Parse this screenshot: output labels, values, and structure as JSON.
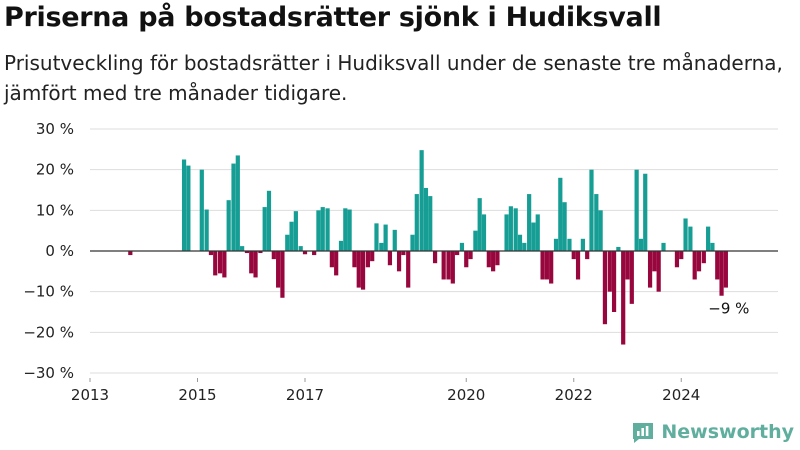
{
  "title": "Priserna på bostadsrätter sjönk i Hudiksvall",
  "subtitle": "Prisutveckling för bostadsrätter i Hudiksvall under de senaste tre månaderna, jämfört med tre månader tidigare.",
  "brand": "Newsworthy",
  "colors": {
    "positive": "#169e95",
    "negative": "#98063e",
    "zero_line": "#333333",
    "grid": "#dddddd"
  },
  "chart_data": {
    "type": "bar",
    "y_unit": "%",
    "ylim": [
      -30,
      30
    ],
    "xlim": [
      2013,
      2025.8
    ],
    "y_ticks": [
      {
        "value": 30,
        "label": "30 %"
      },
      {
        "value": 20,
        "label": "20 %"
      },
      {
        "value": 10,
        "label": "10 %"
      },
      {
        "value": 0,
        "label": "0 %"
      },
      {
        "value": -10,
        "label": "−10 %"
      },
      {
        "value": -20,
        "label": "−20 %"
      },
      {
        "value": -30,
        "label": "−30 %"
      }
    ],
    "x_ticks": [
      {
        "value": 2013,
        "label": "2013"
      },
      {
        "value": 2015,
        "label": "2015"
      },
      {
        "value": 2017,
        "label": "2017"
      },
      {
        "value": 2020,
        "label": "2020"
      },
      {
        "value": 2022,
        "label": "2022"
      },
      {
        "value": 2024,
        "label": "2024"
      }
    ],
    "grid": true,
    "annotation": {
      "text": "−9 %",
      "x": 2024.83,
      "y": -9
    },
    "points": [
      {
        "x": 2013.75,
        "y": -1
      },
      {
        "x": 2014.75,
        "y": 22.5
      },
      {
        "x": 2014.83,
        "y": 21
      },
      {
        "x": 2015.08,
        "y": 20
      },
      {
        "x": 2015.17,
        "y": 10.2
      },
      {
        "x": 2015.25,
        "y": -1
      },
      {
        "x": 2015.33,
        "y": -6
      },
      {
        "x": 2015.42,
        "y": -5.5
      },
      {
        "x": 2015.5,
        "y": -6.5
      },
      {
        "x": 2015.58,
        "y": 12.5
      },
      {
        "x": 2015.67,
        "y": 21.5
      },
      {
        "x": 2015.75,
        "y": 23.5
      },
      {
        "x": 2015.83,
        "y": 1.2
      },
      {
        "x": 2015.92,
        "y": -0.5
      },
      {
        "x": 2016.0,
        "y": -5.5
      },
      {
        "x": 2016.08,
        "y": -6.5
      },
      {
        "x": 2016.17,
        "y": -0.5
      },
      {
        "x": 2016.25,
        "y": 10.8
      },
      {
        "x": 2016.33,
        "y": 14.8
      },
      {
        "x": 2016.42,
        "y": -2
      },
      {
        "x": 2016.5,
        "y": -9
      },
      {
        "x": 2016.58,
        "y": -11.5
      },
      {
        "x": 2016.67,
        "y": 4
      },
      {
        "x": 2016.75,
        "y": 7.2
      },
      {
        "x": 2016.83,
        "y": 9.8
      },
      {
        "x": 2016.92,
        "y": 1.2
      },
      {
        "x": 2017.0,
        "y": -0.8
      },
      {
        "x": 2017.17,
        "y": -1
      },
      {
        "x": 2017.25,
        "y": 10
      },
      {
        "x": 2017.33,
        "y": 10.8
      },
      {
        "x": 2017.42,
        "y": 10.5
      },
      {
        "x": 2017.5,
        "y": -4
      },
      {
        "x": 2017.58,
        "y": -6
      },
      {
        "x": 2017.67,
        "y": 2.5
      },
      {
        "x": 2017.75,
        "y": 10.5
      },
      {
        "x": 2017.83,
        "y": 10.2
      },
      {
        "x": 2017.92,
        "y": -4
      },
      {
        "x": 2018.0,
        "y": -9
      },
      {
        "x": 2018.08,
        "y": -9.5
      },
      {
        "x": 2018.17,
        "y": -4
      },
      {
        "x": 2018.25,
        "y": -2.5
      },
      {
        "x": 2018.33,
        "y": 6.8
      },
      {
        "x": 2018.42,
        "y": 2
      },
      {
        "x": 2018.5,
        "y": 6.5
      },
      {
        "x": 2018.58,
        "y": -3.5
      },
      {
        "x": 2018.67,
        "y": 5.2
      },
      {
        "x": 2018.75,
        "y": -5
      },
      {
        "x": 2018.83,
        "y": -1
      },
      {
        "x": 2018.92,
        "y": -9
      },
      {
        "x": 2019.0,
        "y": 4
      },
      {
        "x": 2019.08,
        "y": 14
      },
      {
        "x": 2019.17,
        "y": 24.8
      },
      {
        "x": 2019.25,
        "y": 15.5
      },
      {
        "x": 2019.33,
        "y": 13.5
      },
      {
        "x": 2019.42,
        "y": -3
      },
      {
        "x": 2019.58,
        "y": -7
      },
      {
        "x": 2019.67,
        "y": -7
      },
      {
        "x": 2019.75,
        "y": -8
      },
      {
        "x": 2019.83,
        "y": -1
      },
      {
        "x": 2019.92,
        "y": 2
      },
      {
        "x": 2020.0,
        "y": -4
      },
      {
        "x": 2020.08,
        "y": -2
      },
      {
        "x": 2020.17,
        "y": 5
      },
      {
        "x": 2020.25,
        "y": 13
      },
      {
        "x": 2020.33,
        "y": 9
      },
      {
        "x": 2020.42,
        "y": -4
      },
      {
        "x": 2020.5,
        "y": -5
      },
      {
        "x": 2020.58,
        "y": -3.5
      },
      {
        "x": 2020.75,
        "y": 9
      },
      {
        "x": 2020.83,
        "y": 11
      },
      {
        "x": 2020.92,
        "y": 10.5
      },
      {
        "x": 2021.0,
        "y": 4
      },
      {
        "x": 2021.08,
        "y": 2
      },
      {
        "x": 2021.17,
        "y": 14
      },
      {
        "x": 2021.25,
        "y": 7
      },
      {
        "x": 2021.33,
        "y": 9
      },
      {
        "x": 2021.42,
        "y": -7
      },
      {
        "x": 2021.5,
        "y": -7
      },
      {
        "x": 2021.58,
        "y": -8
      },
      {
        "x": 2021.67,
        "y": 3
      },
      {
        "x": 2021.75,
        "y": 18
      },
      {
        "x": 2021.83,
        "y": 12
      },
      {
        "x": 2021.92,
        "y": 3
      },
      {
        "x": 2022.0,
        "y": -2
      },
      {
        "x": 2022.08,
        "y": -7
      },
      {
        "x": 2022.17,
        "y": 3
      },
      {
        "x": 2022.25,
        "y": -2
      },
      {
        "x": 2022.33,
        "y": 20
      },
      {
        "x": 2022.42,
        "y": 14
      },
      {
        "x": 2022.5,
        "y": 10
      },
      {
        "x": 2022.58,
        "y": -18
      },
      {
        "x": 2022.67,
        "y": -10
      },
      {
        "x": 2022.75,
        "y": -15
      },
      {
        "x": 2022.83,
        "y": 1
      },
      {
        "x": 2022.92,
        "y": -23
      },
      {
        "x": 2023.0,
        "y": -7
      },
      {
        "x": 2023.08,
        "y": -13
      },
      {
        "x": 2023.17,
        "y": 20
      },
      {
        "x": 2023.25,
        "y": 3
      },
      {
        "x": 2023.33,
        "y": 19
      },
      {
        "x": 2023.42,
        "y": -9
      },
      {
        "x": 2023.5,
        "y": -5
      },
      {
        "x": 2023.58,
        "y": -10
      },
      {
        "x": 2023.67,
        "y": 2
      },
      {
        "x": 2023.92,
        "y": -4
      },
      {
        "x": 2024.0,
        "y": -2
      },
      {
        "x": 2024.08,
        "y": 8
      },
      {
        "x": 2024.17,
        "y": 6
      },
      {
        "x": 2024.25,
        "y": -7
      },
      {
        "x": 2024.33,
        "y": -5
      },
      {
        "x": 2024.42,
        "y": -3
      },
      {
        "x": 2024.5,
        "y": 6
      },
      {
        "x": 2024.58,
        "y": 2
      },
      {
        "x": 2024.67,
        "y": -7
      },
      {
        "x": 2024.75,
        "y": -11
      },
      {
        "x": 2024.83,
        "y": -9
      }
    ]
  }
}
